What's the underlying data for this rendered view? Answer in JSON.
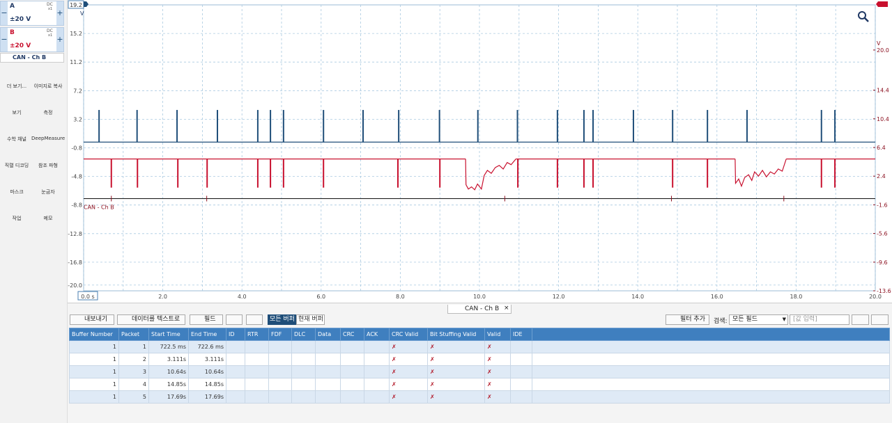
{
  "sidebar": {
    "channels": [
      {
        "name": "A",
        "coupling": "DC",
        "probe": "x1",
        "range": "±20 V"
      },
      {
        "name": "B",
        "coupling": "DC",
        "probe": "x1",
        "range": "±20 V"
      }
    ],
    "decoder": "CAN - Ch B",
    "tools": [
      "더 보기...",
      "이미지로 복사",
      "보기",
      "측정",
      "수학 채널",
      "DeepMeasure",
      "직렬 디코딩",
      "참조 파형",
      "마스크",
      "눈금자",
      "작업",
      "메모"
    ]
  },
  "chart_data": {
    "type": "line",
    "y_unit": "V",
    "y2_unit": "V",
    "xlim": [
      0,
      20
    ],
    "ylim": [
      -20.8,
      19.2
    ],
    "y2lim": [
      -13.6,
      26.3
    ],
    "xticks": [
      {
        "value": 0,
        "label": "0.0 s"
      },
      {
        "value": 2,
        "label": "2.0"
      },
      {
        "value": 4,
        "label": "4.0"
      },
      {
        "value": 6,
        "label": "6.0"
      },
      {
        "value": 8,
        "label": "8.0"
      },
      {
        "value": 10,
        "label": "10.0"
      },
      {
        "value": 12,
        "label": "12.0"
      },
      {
        "value": 14,
        "label": "14.0"
      },
      {
        "value": 16,
        "label": "16.0"
      },
      {
        "value": 18,
        "label": "18.0"
      },
      {
        "value": 20,
        "label": "20.0"
      }
    ],
    "xminor": [
      1,
      3,
      5,
      7,
      9,
      11,
      13,
      15,
      17,
      19
    ],
    "yticks": [
      15.2,
      11.2,
      7.2,
      3.2,
      -0.8,
      -4.8,
      -8.8,
      -12.8,
      -16.8,
      {
        "value": -20,
        "label": "-20.0"
      }
    ],
    "y2ticks": [
      {
        "value": 20,
        "label": "20.0"
      },
      14.4,
      10.4,
      6.4,
      2.4,
      -1.6,
      -5.6,
      -9.6,
      -13.6
    ],
    "grid": true,
    "series": [
      {
        "name": "A",
        "color": "#1f4e79",
        "axis": "y",
        "baseline": 0,
        "high": 4.5,
        "pulses": [
          0.39,
          1.35,
          2.36,
          3.38,
          4.4,
          4.72,
          5.05,
          6.06,
          7.06,
          7.96,
          8.99,
          9.96,
          10.96,
          11.97,
          12.64,
          12.87,
          13.89,
          14.88,
          15.76,
          16.76,
          18.64,
          18.98
        ]
      },
      {
        "name": "B",
        "color": "#c8102e",
        "axis": "y2",
        "baseline": 4.8,
        "low": 0.8,
        "pulses": [
          0.7,
          1.36,
          2.38,
          3.12,
          4.4,
          4.72,
          5.05,
          6.06,
          7.94,
          9.0,
          10.97,
          11.97,
          12.64,
          12.87,
          14.88,
          15.76,
          18.64,
          18.98
        ],
        "segments": [
          {
            "x": [
              9.65,
              9.66,
              9.72,
              9.8,
              9.88,
              9.95,
              10.05,
              10.12,
              10.2,
              10.3,
              10.4,
              10.5,
              10.6,
              10.7,
              10.8,
              10.92
            ],
            "y": [
              4.8,
              1.2,
              0.6,
              0.9,
              0.5,
              1.3,
              0.6,
              2.5,
              3.2,
              2.8,
              3.6,
              3.9,
              3.4,
              4.3,
              4.0,
              4.8
            ]
          },
          {
            "x": [
              16.46,
              16.47,
              16.55,
              16.62,
              16.7,
              16.8,
              16.88,
              16.95,
              17.05,
              17.15,
              17.25,
              17.35,
              17.45,
              17.55,
              17.65,
              17.75
            ],
            "y": [
              4.8,
              1.4,
              2.0,
              1.0,
              2.2,
              2.6,
              1.8,
              3.0,
              2.4,
              3.2,
              2.3,
              3.0,
              2.7,
              3.4,
              3.1,
              4.8
            ]
          }
        ]
      }
    ],
    "decoder": {
      "name": "CAN - Ch B",
      "level": -7.9,
      "marks": [
        0.7,
        3.11,
        10.64,
        14.85,
        17.69
      ]
    }
  },
  "panel": {
    "tab": "CAN - Ch B",
    "toolbar": [
      "내보내기",
      "데이터를 텍스트로",
      "필드"
    ],
    "buffers": [
      "모든 버퍼",
      "현재 버퍼"
    ],
    "filter": "필터 추가",
    "search_label": "검색:",
    "search_field": "모든 필드",
    "search_placeholder": "[값 입력]"
  },
  "table": {
    "columns": [
      "Buffer Number",
      "Packet",
      "Start Time",
      "End Time",
      "ID",
      "RTR",
      "FDF",
      "DLC",
      "Data",
      "CRC",
      "ACK",
      "CRC Valid",
      "Bit Stuffing Valid",
      "Valid",
      "IDE"
    ],
    "rows": [
      {
        "0": 1,
        "1": 1,
        "2": "722.5 ms",
        "3": "722.6 ms",
        "11": "✗",
        "12": "✗",
        "13": "✗"
      },
      {
        "0": 1,
        "1": 2,
        "2": "3.111s",
        "3": "3.111s",
        "11": "✗",
        "12": "✗",
        "13": "✗"
      },
      {
        "0": 1,
        "1": 3,
        "2": "10.64s",
        "3": "10.64s",
        "11": "✗",
        "12": "✗",
        "13": "✗"
      },
      {
        "0": 1,
        "1": 4,
        "2": "14.85s",
        "3": "14.85s",
        "11": "✗",
        "12": "✗",
        "13": "✗"
      },
      {
        "0": 1,
        "1": 5,
        "2": "17.69s",
        "3": "17.69s",
        "11": "✗",
        "12": "✗",
        "13": "✗"
      }
    ]
  }
}
